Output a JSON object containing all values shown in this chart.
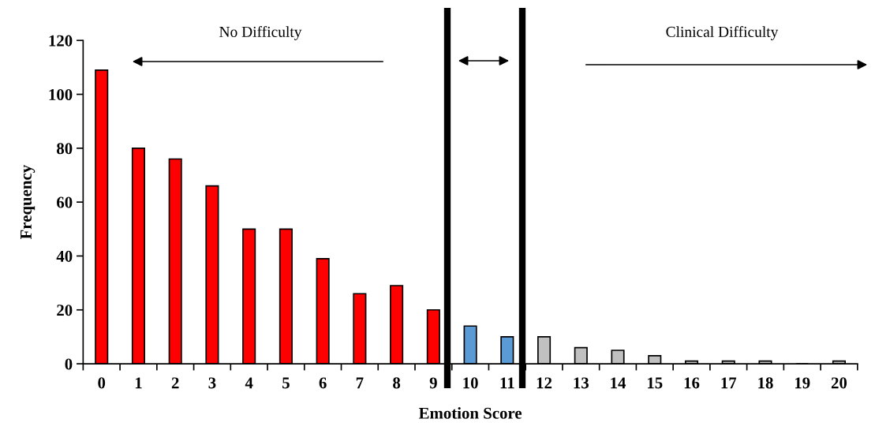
{
  "chart_data": {
    "type": "bar",
    "xlabel": "Emotion Score",
    "ylabel": "Frequency",
    "categories": [
      "0",
      "1",
      "2",
      "3",
      "4",
      "5",
      "6",
      "7",
      "8",
      "9",
      "10",
      "11",
      "12",
      "13",
      "14",
      "15",
      "16",
      "17",
      "18",
      "19",
      "20"
    ],
    "values": [
      109,
      80,
      76,
      66,
      50,
      50,
      39,
      26,
      29,
      20,
      14,
      10,
      10,
      6,
      5,
      3,
      1,
      1,
      1,
      0,
      1
    ],
    "colors": [
      "#ff0000",
      "#ff0000",
      "#ff0000",
      "#ff0000",
      "#ff0000",
      "#ff0000",
      "#ff0000",
      "#ff0000",
      "#ff0000",
      "#ff0000",
      "#5b9bd5",
      "#5b9bd5",
      "#c0c0c0",
      "#c0c0c0",
      "#c0c0c0",
      "#c0c0c0",
      "#c0c0c0",
      "#c0c0c0",
      "#c0c0c0",
      "#c0c0c0",
      "#c0c0c0"
    ],
    "ylim": [
      0,
      120
    ],
    "yticks": [
      0,
      20,
      40,
      60,
      80,
      100,
      120
    ],
    "grid": false,
    "annotations": [
      "No Difficulty",
      "Clinical Difficulty"
    ]
  }
}
